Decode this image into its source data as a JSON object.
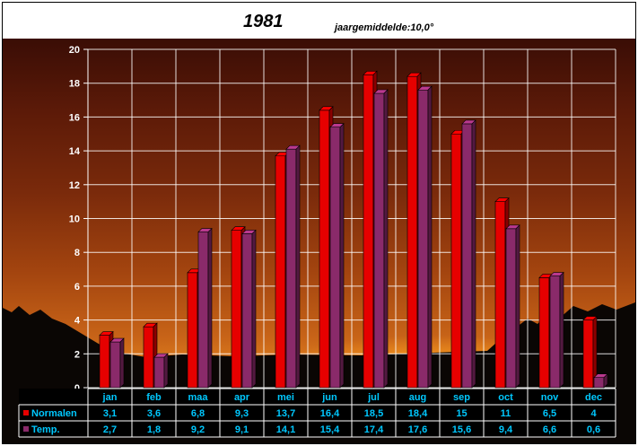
{
  "title": "1981",
  "subtitle": "jaargemiddelde:10,0°",
  "colors": {
    "normalen": "#e60000",
    "temp": "#8a2a6a",
    "table_text": "#00c8ff"
  },
  "chart_data": {
    "type": "bar",
    "title": "1981",
    "subtitle": "jaargemiddelde:10,0°",
    "categories": [
      "jan",
      "feb",
      "maa",
      "apr",
      "mei",
      "jun",
      "jul",
      "aug",
      "sep",
      "oct",
      "nov",
      "dec"
    ],
    "series": [
      {
        "name": "Normalen",
        "values": [
          3.1,
          3.6,
          6.8,
          9.3,
          13.7,
          16.4,
          18.5,
          18.4,
          15,
          11,
          6.5,
          4
        ]
      },
      {
        "name": "Temp.",
        "values": [
          2.7,
          1.8,
          9.2,
          9.1,
          14.1,
          15.4,
          17.4,
          17.6,
          15.6,
          9.4,
          6.6,
          0.6
        ]
      }
    ],
    "table_rows": [
      {
        "label": "Normalen",
        "values": [
          "3,1",
          "3,6",
          "6,8",
          "9,3",
          "13,7",
          "16,4",
          "18,5",
          "18,4",
          "15",
          "11",
          "6,5",
          "4"
        ]
      },
      {
        "label": "Temp.",
        "values": [
          "2,7",
          "1,8",
          "9,2",
          "9,1",
          "14,1",
          "15,4",
          "17,4",
          "17,6",
          "15,6",
          "9,4",
          "6,6",
          "0,6"
        ]
      }
    ],
    "yticks": [
      "0",
      "2",
      "4",
      "6",
      "8",
      "10",
      "12",
      "14",
      "16",
      "18",
      "20"
    ],
    "ylim": [
      0,
      20
    ],
    "grid": true,
    "legend": "data-table-left"
  }
}
